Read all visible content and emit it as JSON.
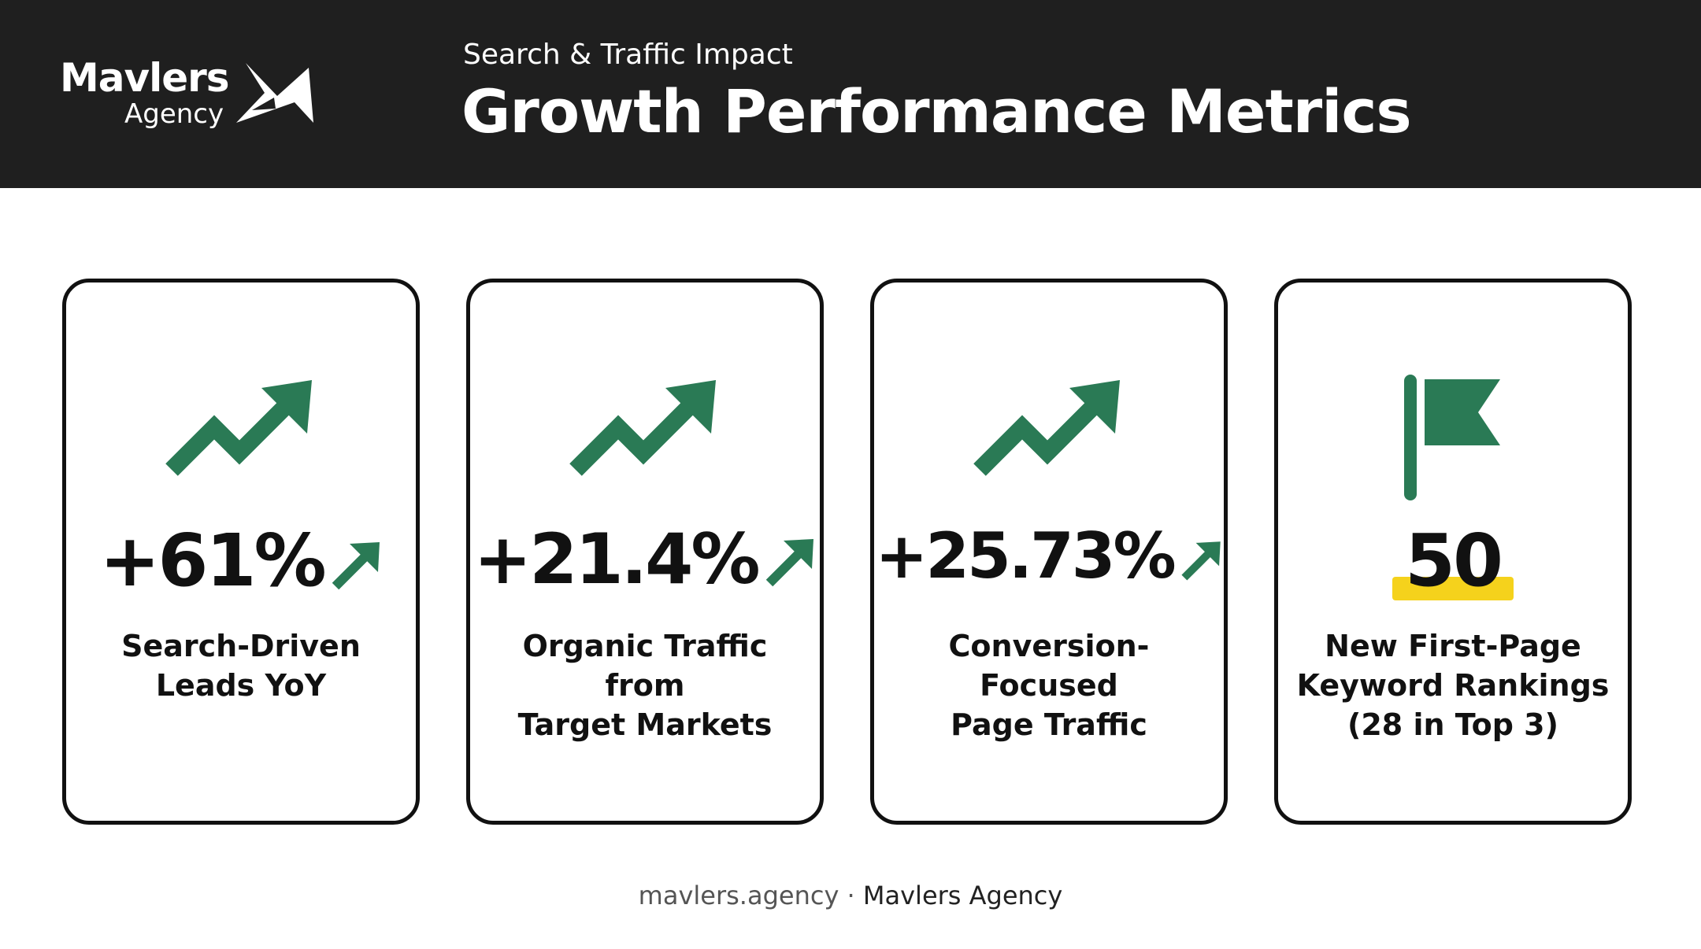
{
  "header": {
    "logo_word": "Mavlers",
    "logo_sub": "Agency",
    "subtitle": "Search & Traffic Impact",
    "title": "Growth Performance Metrics"
  },
  "colors": {
    "header_bg": "#1f1f1f",
    "accent_green": "#2a7a55",
    "highlight_yellow": "#f5d21c",
    "card_border": "#111111"
  },
  "cards": [
    {
      "icon": "trend-up-icon",
      "value": "+61%",
      "value_arrow": "arrow-up-right-icon",
      "label_lines": [
        "Search-Driven",
        "Leads YoY"
      ]
    },
    {
      "icon": "trend-up-icon",
      "value": "+21.4%",
      "value_arrow": "arrow-up-right-icon",
      "label_lines": [
        "Organic Traffic from",
        "Target Markets"
      ]
    },
    {
      "icon": "trend-up-icon",
      "value": "+25.73%",
      "value_arrow": "arrow-up-right-icon",
      "label_lines": [
        "Conversion-Focused",
        "Page Traffic"
      ]
    },
    {
      "icon": "flag-icon",
      "value": "50",
      "value_highlight": true,
      "label_lines": [
        "New First-Page",
        "Keyword Rankings",
        "(28 in Top 3)"
      ]
    }
  ],
  "footer": {
    "url": "mavlers.agency",
    "separator": "·",
    "brand": "Mavlers Agency"
  }
}
